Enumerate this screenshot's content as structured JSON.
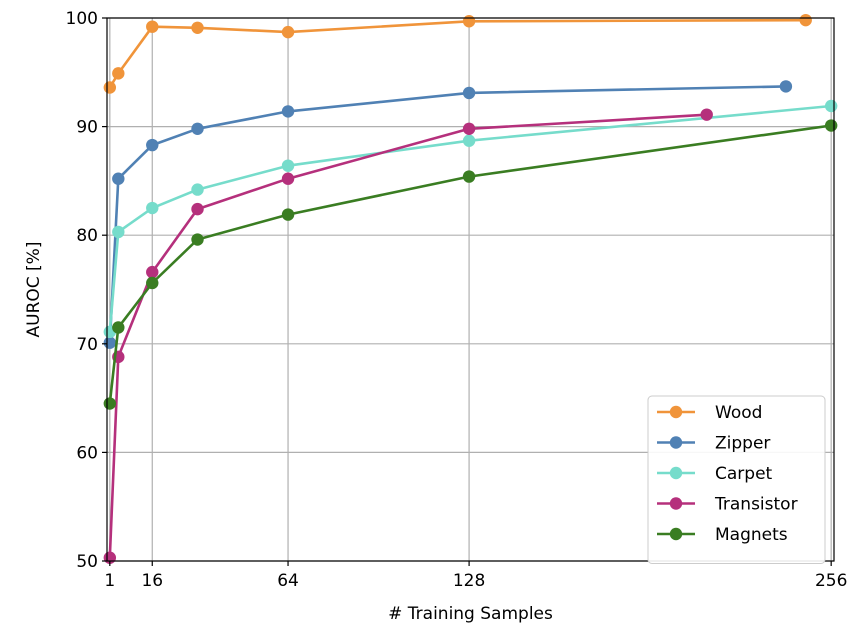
{
  "chart_data": {
    "type": "line",
    "xlabel": "# Training Samples",
    "ylabel": "AUROC [%]",
    "xlim": [
      0,
      257
    ],
    "ylim": [
      50,
      100
    ],
    "xticks": [
      1,
      16,
      64,
      128,
      256
    ],
    "yticks": [
      50,
      60,
      70,
      80,
      90,
      100
    ],
    "grid": true,
    "legend": "bottom-right",
    "series": [
      {
        "name": "Wood",
        "color": "#f0943a",
        "x": [
          1,
          4,
          16,
          32,
          64,
          128,
          247
        ],
        "y": [
          93.6,
          94.9,
          99.2,
          99.1,
          98.7,
          99.7,
          99.8
        ]
      },
      {
        "name": "Zipper",
        "color": "#5081b4",
        "x": [
          1,
          4,
          16,
          32,
          64,
          128,
          240
        ],
        "y": [
          70.1,
          85.2,
          88.3,
          89.8,
          91.4,
          93.1,
          93.7
        ]
      },
      {
        "name": "Carpet",
        "color": "#76dccb",
        "x": [
          1,
          4,
          16,
          32,
          64,
          128,
          256
        ],
        "y": [
          71.1,
          80.3,
          82.5,
          84.2,
          86.4,
          88.7,
          91.9
        ]
      },
      {
        "name": "Transistor",
        "color": "#b5307c",
        "x": [
          1,
          4,
          16,
          32,
          64,
          128,
          212
        ],
        "y": [
          50.3,
          68.8,
          76.6,
          82.4,
          85.2,
          89.8,
          91.1
        ]
      },
      {
        "name": "Magnets",
        "color": "#3a7d22",
        "x": [
          1,
          4,
          16,
          32,
          64,
          128,
          256
        ],
        "y": [
          64.5,
          71.5,
          75.6,
          79.6,
          81.9,
          85.4,
          90.1
        ]
      }
    ]
  }
}
